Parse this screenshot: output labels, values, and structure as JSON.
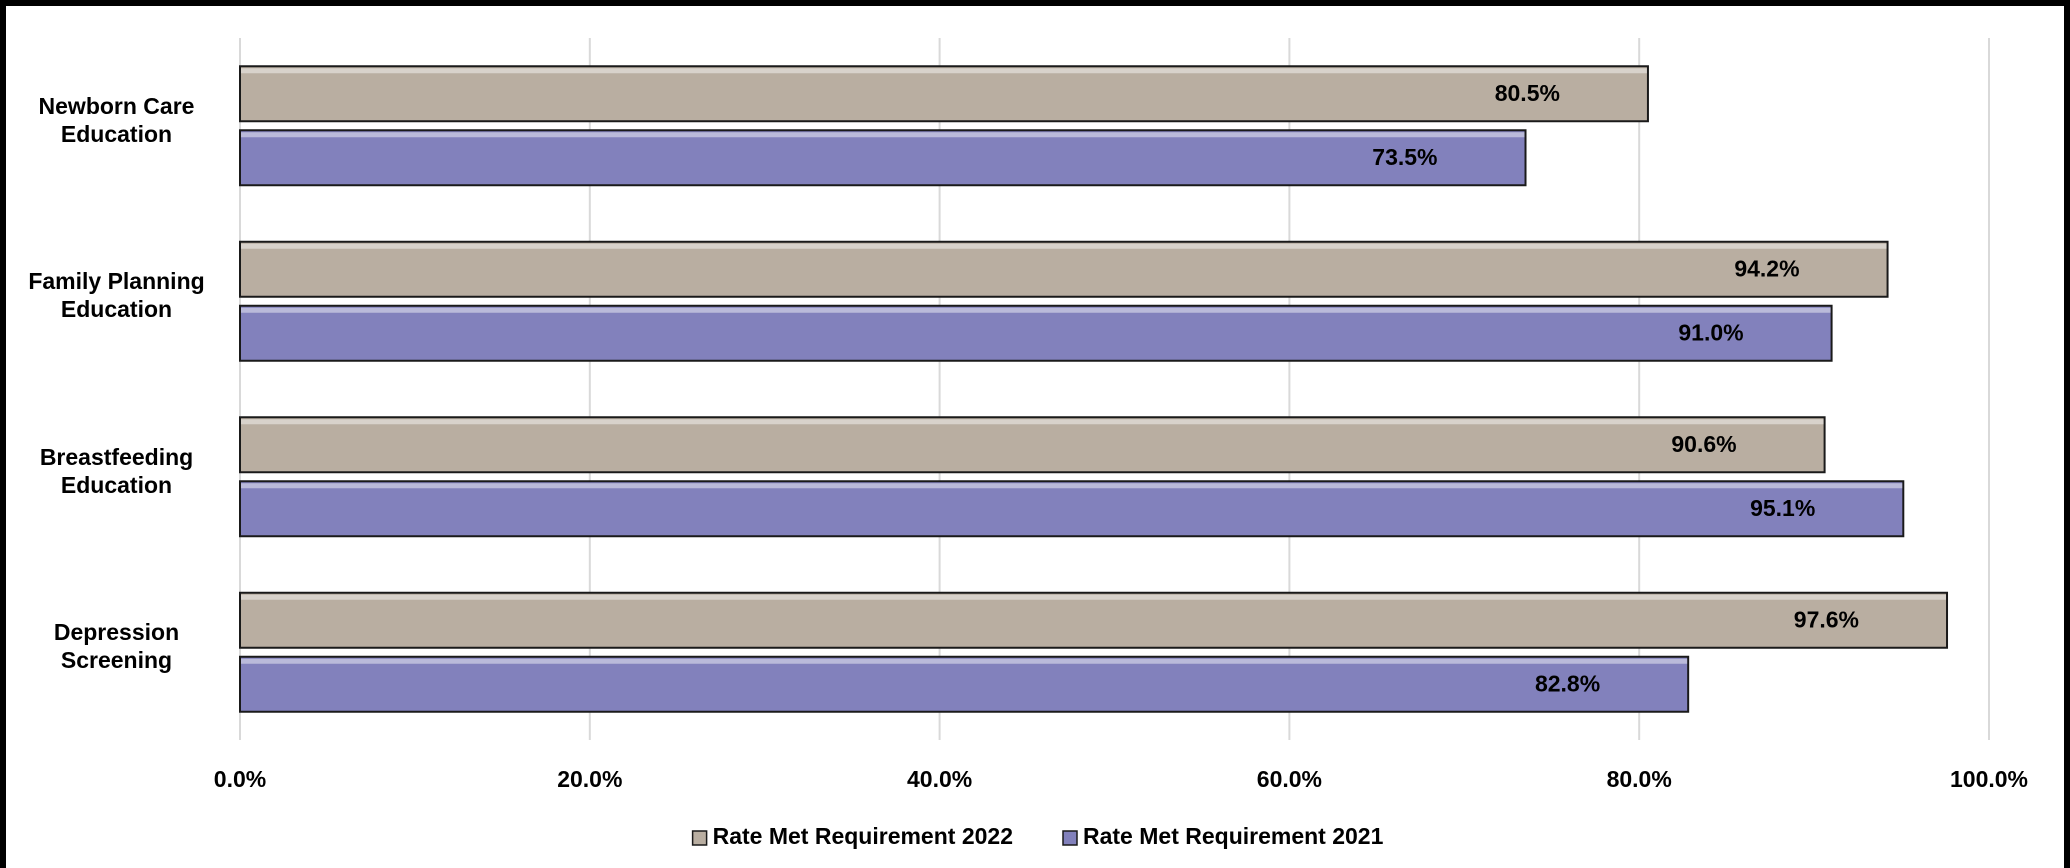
{
  "chart_data": {
    "type": "hbar",
    "categories": [
      "Newborn Care Education",
      "Family Planning Education",
      "Breastfeeding Education",
      "Depression Screening"
    ],
    "series": [
      {
        "name": "Rate Met Requirement 2022",
        "color": "#b9aea1",
        "values": [
          80.5,
          94.2,
          90.6,
          97.6
        ],
        "value_labels": [
          "80.5%",
          "94.2%",
          "90.6%",
          "97.6%"
        ]
      },
      {
        "name": "Rate Met Requirement 2021",
        "color": "#8281bc",
        "values": [
          73.5,
          91.0,
          95.1,
          82.8
        ],
        "value_labels": [
          "73.5%",
          "91.0%",
          "95.1%",
          "82.8%"
        ]
      }
    ],
    "xlim": [
      0,
      100
    ],
    "xticks": [
      {
        "value": 0,
        "label": "0.0%"
      },
      {
        "value": 20,
        "label": "20.0%"
      },
      {
        "value": 40,
        "label": "40.0%"
      },
      {
        "value": 60,
        "label": "60.0%"
      },
      {
        "value": 80,
        "label": "80.0%"
      },
      {
        "value": 100,
        "label": "100.0%"
      }
    ],
    "grid": true,
    "legend": "bottom"
  }
}
